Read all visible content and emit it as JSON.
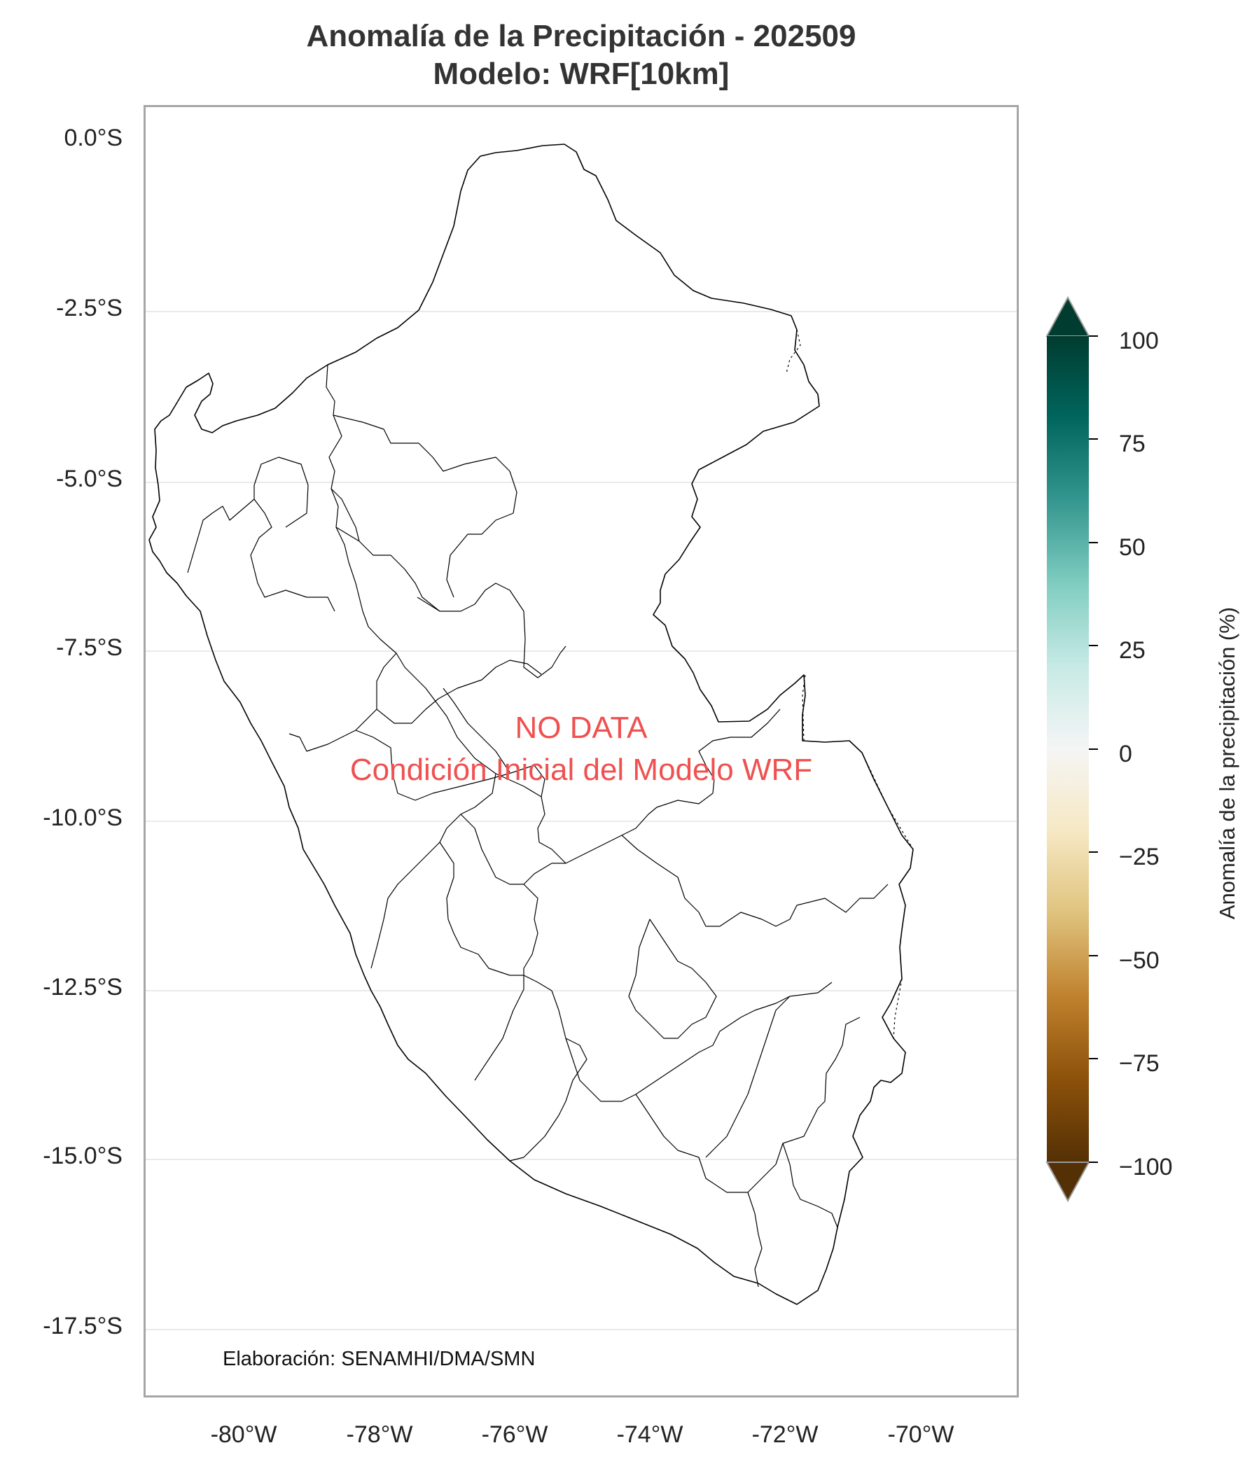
{
  "title": "Anomalía de la Precipitación - 202509",
  "subtitle": "Modelo: WRF[10km]",
  "map": {
    "lat_labels": [
      "0.0°S",
      "-2.5°S",
      "-5.0°S",
      "-7.5°S",
      "-10.0°S",
      "-12.5°S",
      "-15.0°S",
      "-17.5°S"
    ],
    "lon_labels": [
      "-80°W",
      "-78°W",
      "-76°W",
      "-74°W",
      "-72°W",
      "-70°W"
    ],
    "gridlines": true
  },
  "no_data_line1": "NO DATA",
  "no_data_line2": "Condición Inicial del Modelo WRF",
  "credit": "Elaboración: SENAMHI/DMA/SMN",
  "colorbar": {
    "label": "Anomalía de la precipitación (%)",
    "ticks": [
      "100",
      "75",
      "50",
      "25",
      "0",
      "−25",
      "−50",
      "−75",
      "−100"
    ],
    "range": [
      -100,
      100
    ],
    "extend": "both",
    "colors": [
      "#543005",
      "#8c510a",
      "#bf812d",
      "#dfc27d",
      "#f6e8c3",
      "#f5f5f5",
      "#c7eae5",
      "#80cdc1",
      "#35978f",
      "#01665e",
      "#003c30"
    ]
  }
}
